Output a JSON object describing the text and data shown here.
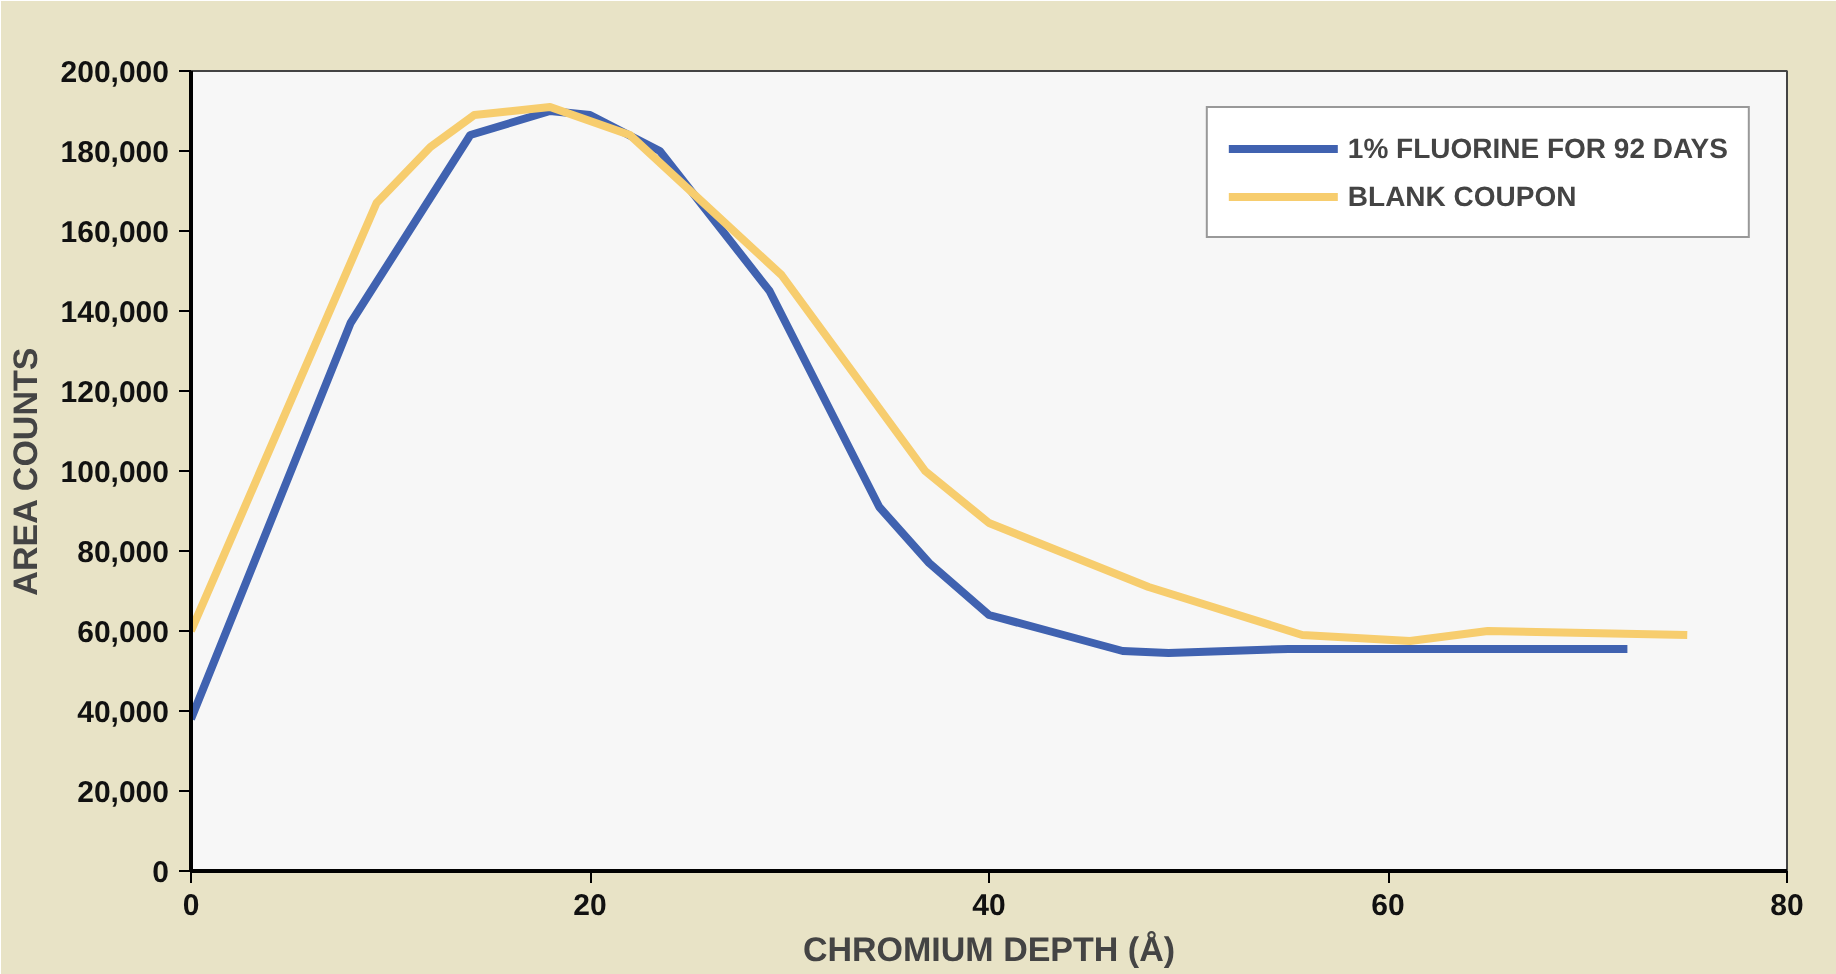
{
  "chart_data": {
    "type": "line",
    "xlabel": "CHROMIUM DEPTH (Å)",
    "ylabel": "AREA COUNTS",
    "xlim": [
      0,
      80
    ],
    "xticks": [
      0,
      20,
      40,
      60,
      80
    ],
    "ylim": [
      0,
      200000
    ],
    "yticks": [
      {
        "value": 0,
        "label": "0"
      },
      {
        "value": 20000,
        "label": "20,000"
      },
      {
        "value": 40000,
        "label": "40,000"
      },
      {
        "value": 60000,
        "label": "60,000"
      },
      {
        "value": 80000,
        "label": "80,000"
      },
      {
        "value": 100000,
        "label": "100,000"
      },
      {
        "value": 120000,
        "label": "120,000"
      },
      {
        "value": 140000,
        "label": "140,000"
      },
      {
        "value": 160000,
        "label": "160,000"
      },
      {
        "value": 180000,
        "label": "180,000"
      },
      {
        "value": 200000,
        "label": "200,000"
      }
    ],
    "grid": false,
    "legend": "top right",
    "marker": "none",
    "line_style": "solid",
    "series": [
      {
        "name": "1% FLUORINE FOR 92 DAYS",
        "color": "#4062b0",
        "x": [
          0,
          8,
          14,
          18,
          20,
          23.5,
          29,
          34.5,
          37,
          40,
          43,
          46.7,
          49,
          55,
          72
        ],
        "values": [
          38000,
          137000,
          184000,
          190000,
          189000,
          180000,
          145000,
          91000,
          77000,
          64000,
          60000,
          55000,
          54500,
          55500,
          55500
        ]
      },
      {
        "name": "BLANK COUPON",
        "color": "#f7cd6e",
        "x": [
          0,
          9.3,
          12,
          14.2,
          18,
          22,
          29.6,
          36.8,
          40,
          48,
          55.7,
          61.1,
          65,
          75
        ],
        "values": [
          60000,
          167000,
          181000,
          189000,
          191000,
          184000,
          149000,
          100000,
          87000,
          71000,
          59000,
          57500,
          60000,
          59000
        ]
      }
    ]
  }
}
